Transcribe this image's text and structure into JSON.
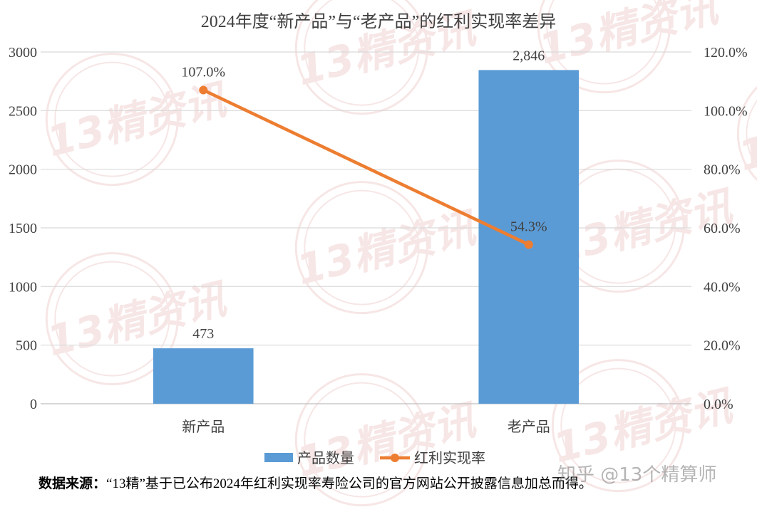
{
  "chart_data": {
    "type": "bar+line",
    "title": "2024年度“新产品”与“老产品”的红利实现率差异",
    "categories": [
      "新产品",
      "老产品"
    ],
    "series": [
      {
        "name": "产品数量",
        "type": "bar",
        "axis": "left",
        "values": [
          473,
          2846
        ],
        "labels": [
          "473",
          "2,846"
        ],
        "color": "#5B9BD5"
      },
      {
        "name": "红利实现率",
        "type": "line",
        "axis": "right",
        "values": [
          1.07,
          0.543
        ],
        "labels": [
          "107.0%",
          "54.3%"
        ],
        "color": "#ED7D31"
      }
    ],
    "y_left": {
      "min": 0,
      "max": 3000,
      "ticks": [
        "0",
        "500",
        "1000",
        "1500",
        "2000",
        "2500",
        "3000"
      ]
    },
    "y_right": {
      "min": 0,
      "max": 1.2,
      "ticks": [
        "0.0%",
        "20.0%",
        "40.0%",
        "60.0%",
        "80.0%",
        "100.0%",
        "120.0%"
      ]
    },
    "grid": true,
    "legend": "bottom"
  },
  "watermark": {
    "text": "13精资讯",
    "color": "#E8B4B4"
  },
  "source": {
    "label": "数据来源：",
    "text": "“13精”基于已公布2024年红利实现率寿险公司的官方网站公开披露信息加总而得。"
  },
  "corner_watermark": "知乎 @13个精算师"
}
